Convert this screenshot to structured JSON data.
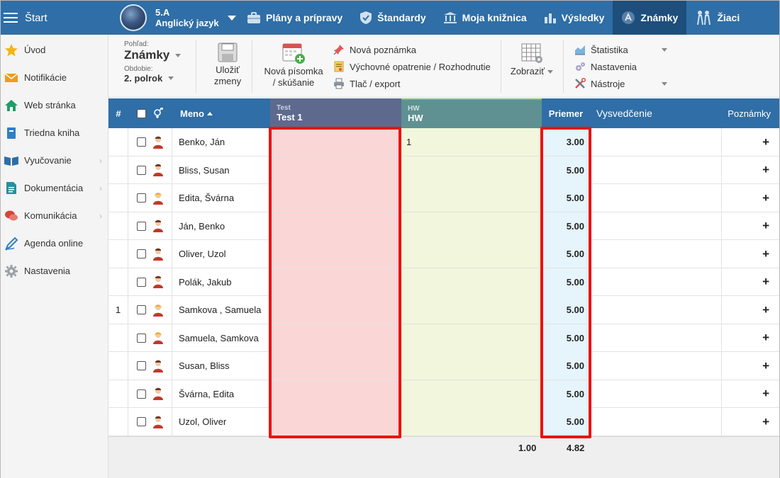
{
  "topbar": {
    "start_label": "Štart",
    "class_name": "5.A",
    "subject": "Anglický jazyk",
    "nav": [
      {
        "label": "Plány a prípravy",
        "icon": "briefcase-icon",
        "active": false
      },
      {
        "label": "Štandardy",
        "icon": "shield-icon",
        "active": false
      },
      {
        "label": "Moja knižnica",
        "icon": "library-icon",
        "active": false
      },
      {
        "label": "Výsledky",
        "icon": "bar-chart-icon",
        "active": false
      },
      {
        "label": "Známky",
        "icon": "grades-icon",
        "active": true
      },
      {
        "label": "Žiaci",
        "icon": "students-icon",
        "active": false
      }
    ]
  },
  "sidebar": {
    "items": [
      {
        "label": "Úvod",
        "icon": "star-icon",
        "has_submenu": false
      },
      {
        "label": "Notifikácie",
        "icon": "envelope-icon",
        "has_submenu": false
      },
      {
        "label": "Web stránka",
        "icon": "home-icon",
        "has_submenu": false
      },
      {
        "label": "Triedna kniha",
        "icon": "book-icon",
        "has_submenu": false
      },
      {
        "label": "Vyučovanie",
        "icon": "open-book-icon",
        "has_submenu": true
      },
      {
        "label": "Dokumentácia",
        "icon": "document-icon",
        "has_submenu": true
      },
      {
        "label": "Komunikácia",
        "icon": "chat-icon",
        "has_submenu": true
      },
      {
        "label": "Agenda online",
        "icon": "pen-icon",
        "has_submenu": false
      },
      {
        "label": "Nastavenia",
        "icon": "gear-icon",
        "has_submenu": false
      }
    ]
  },
  "ribbon": {
    "view_label": "Pohľad:",
    "view_value": "Známky",
    "period_label": "Obdobie:",
    "period_value": "2. polrok",
    "save_label_1": "Uložiť",
    "save_label_2": "zmeny",
    "new_test_label_1": "Nová písomka",
    "new_test_label_2": "/ skúšanie",
    "new_note": "Nová poznámka",
    "edu_measure": "Výchovné opatrenie / Rozhodnutie",
    "print_export": "Tlač / export",
    "show_label": "Zobraziť",
    "statistics": "Štatistika",
    "settings": "Nastavenia",
    "tools": "Nástroje"
  },
  "grid": {
    "headers": {
      "num": "#",
      "gender_icon": "gender-icon",
      "name": "Meno",
      "test_sub": "Test",
      "test_main": "Test 1",
      "hw_sub": "HW",
      "hw_main": "HW",
      "avg": "Priemer",
      "cert": "Vysvedčenie",
      "notes": "Poznámky"
    },
    "rows": [
      {
        "num": "",
        "name": "Benko, Ján",
        "avatar": "male",
        "hw": "1",
        "avg": "3.00"
      },
      {
        "num": "",
        "name": "Bliss, Susan",
        "avatar": "male",
        "hw": "",
        "avg": "5.00"
      },
      {
        "num": "",
        "name": "Edita, Švárna",
        "avatar": "female",
        "hw": "",
        "avg": "5.00"
      },
      {
        "num": "",
        "name": "Ján, Benko",
        "avatar": "male",
        "hw": "",
        "avg": "5.00"
      },
      {
        "num": "",
        "name": "Oliver, Uzol",
        "avatar": "male",
        "hw": "",
        "avg": "5.00"
      },
      {
        "num": "",
        "name": "Polák, Jakub",
        "avatar": "male",
        "hw": "",
        "avg": "5.00"
      },
      {
        "num": "1",
        "name": "Samkova , Samuela",
        "avatar": "female",
        "hw": "",
        "avg": "5.00"
      },
      {
        "num": "",
        "name": "Samuela, Samkova",
        "avatar": "female",
        "hw": "",
        "avg": "5.00"
      },
      {
        "num": "",
        "name": "Susan, Bliss",
        "avatar": "male",
        "hw": "",
        "avg": "5.00"
      },
      {
        "num": "",
        "name": "Švárna, Edita",
        "avatar": "male",
        "hw": "",
        "avg": "5.00"
      },
      {
        "num": "",
        "name": "Uzol, Oliver",
        "avatar": "male",
        "hw": "",
        "avg": "5.00"
      }
    ],
    "add_symbol": "+",
    "footer_hw_avg": "1.00",
    "footer_total_avg": "4.82"
  },
  "colors": {
    "accent": "#2f6ea6",
    "active_nav": "#1d4e7c",
    "test_col": "#fad6d6",
    "hw_col": "#f2f6dc",
    "avg_col": "#e6f4fb",
    "highlight": "#ee1111"
  }
}
